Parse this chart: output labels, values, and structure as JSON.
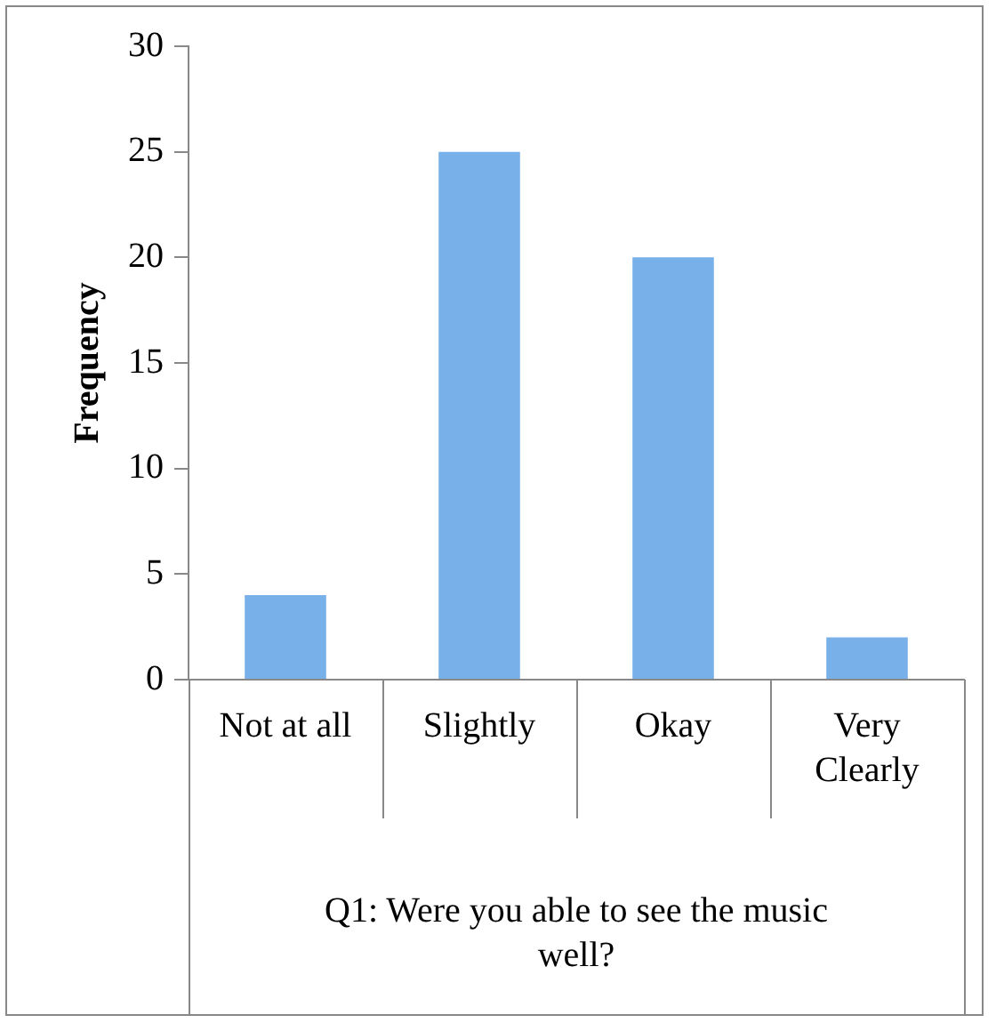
{
  "chart_data": {
    "type": "bar",
    "xlabel": "Q1: Were you able to see the music well?",
    "ylabel": "Frequency",
    "categories": [
      "Not at all",
      "Slightly",
      "Okay",
      "Very Clearly"
    ],
    "values": [
      4,
      25,
      20,
      2
    ],
    "color": "#78b0ea",
    "ylim": [
      0,
      30
    ],
    "yticks": [
      0,
      5,
      10,
      15,
      20,
      25,
      30
    ],
    "grid": false,
    "legend": false
  }
}
